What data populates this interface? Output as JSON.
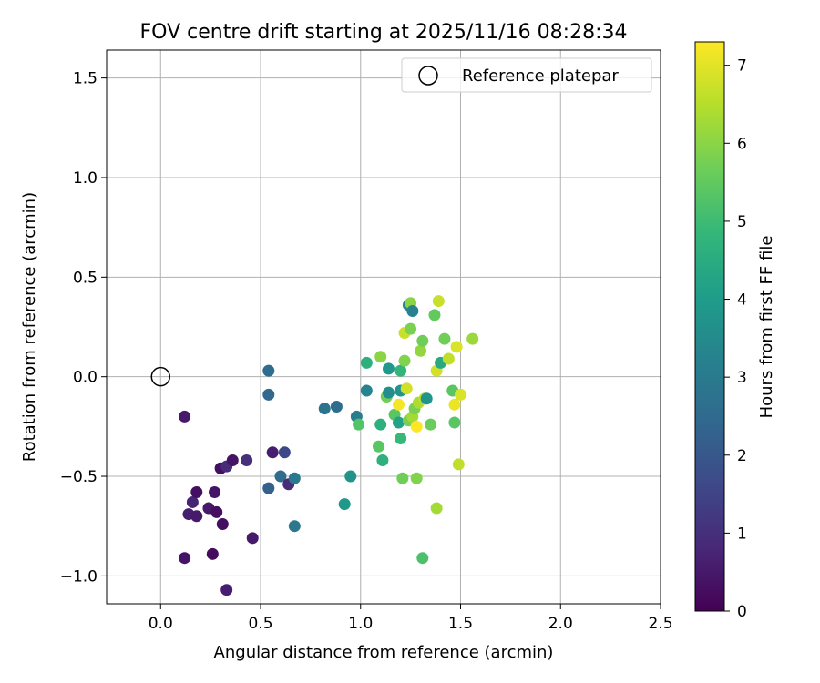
{
  "chart_data": {
    "type": "scatter",
    "title": "FOV centre drift starting at 2025/11/16 08:28:34",
    "xlabel": "Angular distance from reference (arcmin)",
    "ylabel": "Rotation from reference (arcmin)",
    "xlim": [
      -0.27,
      2.5
    ],
    "ylim": [
      -1.14,
      1.64
    ],
    "xticks": [
      0.0,
      0.5,
      1.0,
      1.5,
      2.0,
      2.5
    ],
    "xtick_labels": [
      "0.0",
      "0.5",
      "1.0",
      "1.5",
      "2.0",
      "2.5"
    ],
    "yticks": [
      -1.0,
      -0.5,
      0.0,
      0.5,
      1.0,
      1.5
    ],
    "ytick_labels": [
      "−1.0",
      "−0.5",
      "0.0",
      "0.5",
      "1.0",
      "1.5"
    ],
    "grid": true,
    "legend": {
      "placement": "top-right",
      "label": "Reference platepar"
    },
    "reference_point": {
      "x": 0.0,
      "y": 0.0
    },
    "colorbar": {
      "label": "Hours from first FF file",
      "range": [
        0,
        7.3
      ],
      "ticks": [
        0,
        1,
        2,
        3,
        4,
        5,
        6,
        7
      ],
      "tick_labels": [
        "0",
        "1",
        "2",
        "3",
        "4",
        "5",
        "6",
        "7"
      ],
      "colormap": [
        "#440154",
        "#482878",
        "#3e4989",
        "#31688e",
        "#26828e",
        "#1f9e89",
        "#35b779",
        "#6ece58",
        "#b5de2b",
        "#fde725"
      ]
    },
    "points": [
      {
        "x": 0.12,
        "y": -0.2,
        "c": 0.5
      },
      {
        "x": 0.12,
        "y": -0.91,
        "c": 0.4
      },
      {
        "x": 0.14,
        "y": -0.69,
        "c": 0.6
      },
      {
        "x": 0.16,
        "y": -0.63,
        "c": 0.7
      },
      {
        "x": 0.18,
        "y": -0.58,
        "c": 0.3
      },
      {
        "x": 0.18,
        "y": -0.7,
        "c": 0.5
      },
      {
        "x": 0.24,
        "y": -0.66,
        "c": 0.5
      },
      {
        "x": 0.26,
        "y": -0.89,
        "c": 0.2
      },
      {
        "x": 0.27,
        "y": -0.58,
        "c": 0.4
      },
      {
        "x": 0.28,
        "y": -0.68,
        "c": 0.3
      },
      {
        "x": 0.3,
        "y": -0.46,
        "c": 0.3
      },
      {
        "x": 0.31,
        "y": -0.74,
        "c": 0.3
      },
      {
        "x": 0.33,
        "y": -0.45,
        "c": 0.9
      },
      {
        "x": 0.33,
        "y": -1.07,
        "c": 0.6
      },
      {
        "x": 0.36,
        "y": -0.42,
        "c": 0.4
      },
      {
        "x": 0.43,
        "y": -0.42,
        "c": 1.0
      },
      {
        "x": 0.46,
        "y": -0.81,
        "c": 0.5
      },
      {
        "x": 0.54,
        "y": 0.03,
        "c": 2.6
      },
      {
        "x": 0.54,
        "y": -0.09,
        "c": 2.4
      },
      {
        "x": 0.54,
        "y": -0.56,
        "c": 2.3
      },
      {
        "x": 0.56,
        "y": -0.38,
        "c": 0.6
      },
      {
        "x": 0.6,
        "y": -0.5,
        "c": 2.6
      },
      {
        "x": 0.62,
        "y": -0.38,
        "c": 1.6
      },
      {
        "x": 0.64,
        "y": -0.54,
        "c": 0.9
      },
      {
        "x": 0.67,
        "y": -0.51,
        "c": 3.0
      },
      {
        "x": 0.67,
        "y": -0.75,
        "c": 2.9
      },
      {
        "x": 0.82,
        "y": -0.16,
        "c": 2.8
      },
      {
        "x": 0.88,
        "y": -0.15,
        "c": 2.6
      },
      {
        "x": 0.92,
        "y": -0.64,
        "c": 3.9
      },
      {
        "x": 0.95,
        "y": -0.5,
        "c": 3.7
      },
      {
        "x": 0.98,
        "y": -0.2,
        "c": 3.1
      },
      {
        "x": 0.99,
        "y": -0.24,
        "c": 5.3
      },
      {
        "x": 1.03,
        "y": 0.07,
        "c": 4.6
      },
      {
        "x": 1.03,
        "y": -0.07,
        "c": 3.3
      },
      {
        "x": 1.09,
        "y": -0.35,
        "c": 5.4
      },
      {
        "x": 1.1,
        "y": 0.1,
        "c": 6.0
      },
      {
        "x": 1.1,
        "y": -0.24,
        "c": 4.6
      },
      {
        "x": 1.11,
        "y": -0.42,
        "c": 4.6
      },
      {
        "x": 1.13,
        "y": -0.1,
        "c": 5.7
      },
      {
        "x": 1.14,
        "y": -0.08,
        "c": 3.6
      },
      {
        "x": 1.14,
        "y": 0.04,
        "c": 3.9
      },
      {
        "x": 1.17,
        "y": -0.19,
        "c": 5.4
      },
      {
        "x": 1.19,
        "y": -0.14,
        "c": 7.2
      },
      {
        "x": 1.19,
        "y": -0.23,
        "c": 4.2
      },
      {
        "x": 1.2,
        "y": 0.03,
        "c": 4.8
      },
      {
        "x": 1.2,
        "y": -0.07,
        "c": 3.8
      },
      {
        "x": 1.2,
        "y": -0.31,
        "c": 4.9
      },
      {
        "x": 1.21,
        "y": -0.51,
        "c": 5.7
      },
      {
        "x": 1.22,
        "y": 0.22,
        "c": 6.7
      },
      {
        "x": 1.22,
        "y": 0.08,
        "c": 5.9
      },
      {
        "x": 1.23,
        "y": -0.06,
        "c": 6.8
      },
      {
        "x": 1.24,
        "y": 0.36,
        "c": 3.4
      },
      {
        "x": 1.24,
        "y": -0.22,
        "c": 5.8
      },
      {
        "x": 1.25,
        "y": 0.24,
        "c": 5.8
      },
      {
        "x": 1.25,
        "y": 0.37,
        "c": 6.0
      },
      {
        "x": 1.26,
        "y": -0.2,
        "c": 6.3
      },
      {
        "x": 1.26,
        "y": 0.33,
        "c": 3.2
      },
      {
        "x": 1.27,
        "y": -0.16,
        "c": 5.8
      },
      {
        "x": 1.28,
        "y": -0.25,
        "c": 7.3
      },
      {
        "x": 1.28,
        "y": -0.51,
        "c": 5.9
      },
      {
        "x": 1.29,
        "y": -0.13,
        "c": 6.4
      },
      {
        "x": 1.3,
        "y": 0.13,
        "c": 6.1
      },
      {
        "x": 1.31,
        "y": -0.91,
        "c": 5.2
      },
      {
        "x": 1.31,
        "y": 0.18,
        "c": 5.7
      },
      {
        "x": 1.32,
        "y": -0.11,
        "c": 6.6
      },
      {
        "x": 1.33,
        "y": -0.11,
        "c": 3.8
      },
      {
        "x": 1.35,
        "y": -0.24,
        "c": 5.6
      },
      {
        "x": 1.37,
        "y": 0.31,
        "c": 5.5
      },
      {
        "x": 1.38,
        "y": -0.66,
        "c": 6.3
      },
      {
        "x": 1.38,
        "y": 0.03,
        "c": 6.8
      },
      {
        "x": 1.39,
        "y": 0.38,
        "c": 6.7
      },
      {
        "x": 1.4,
        "y": 0.07,
        "c": 4.4
      },
      {
        "x": 1.42,
        "y": 0.19,
        "c": 5.7
      },
      {
        "x": 1.44,
        "y": 0.09,
        "c": 6.6
      },
      {
        "x": 1.46,
        "y": -0.07,
        "c": 5.4
      },
      {
        "x": 1.47,
        "y": -0.14,
        "c": 7.1
      },
      {
        "x": 1.47,
        "y": -0.23,
        "c": 5.4
      },
      {
        "x": 1.48,
        "y": 0.15,
        "c": 6.9
      },
      {
        "x": 1.49,
        "y": -0.44,
        "c": 6.6
      },
      {
        "x": 1.5,
        "y": -0.09,
        "c": 6.9
      },
      {
        "x": 1.56,
        "y": 0.19,
        "c": 6.2
      }
    ]
  }
}
